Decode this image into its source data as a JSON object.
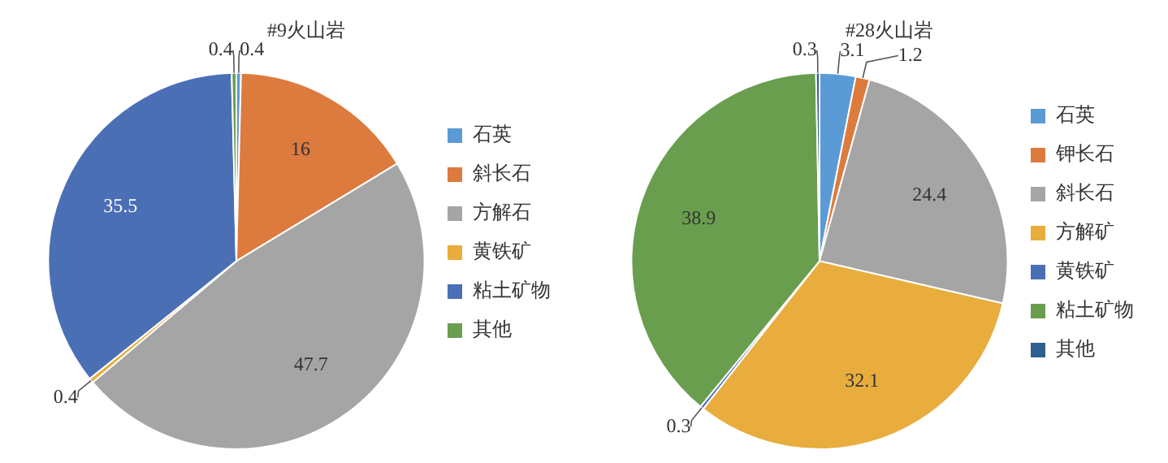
{
  "chart_data": [
    {
      "type": "pie",
      "title": "#9火山岩",
      "categories": [
        "石英",
        "斜长石",
        "方解石",
        "黄铁矿",
        "粘土矿物",
        "其他"
      ],
      "values": [
        0.4,
        16,
        47.7,
        0.4,
        35.5,
        0.4
      ],
      "colors": [
        "#5b9bd5",
        "#dd7a3e",
        "#a5a5a5",
        "#e8ad3d",
        "#4a6fb5",
        "#6a9e4f"
      ],
      "legend": "right",
      "data_labels": true
    },
    {
      "type": "pie",
      "title": "#28火山岩",
      "categories": [
        "石英",
        "钾长石",
        "斜长石",
        "方解矿",
        "黄铁矿",
        "粘土矿物",
        "其他"
      ],
      "values": [
        3.1,
        1.2,
        24.4,
        32.1,
        0.3,
        38.9,
        0.3
      ],
      "colors": [
        "#5b9bd5",
        "#dd7a3e",
        "#a5a5a5",
        "#e8ad3d",
        "#4a6fb5",
        "#6a9e4f",
        "#2f5f8f"
      ],
      "legend": "right",
      "data_labels": true
    }
  ]
}
